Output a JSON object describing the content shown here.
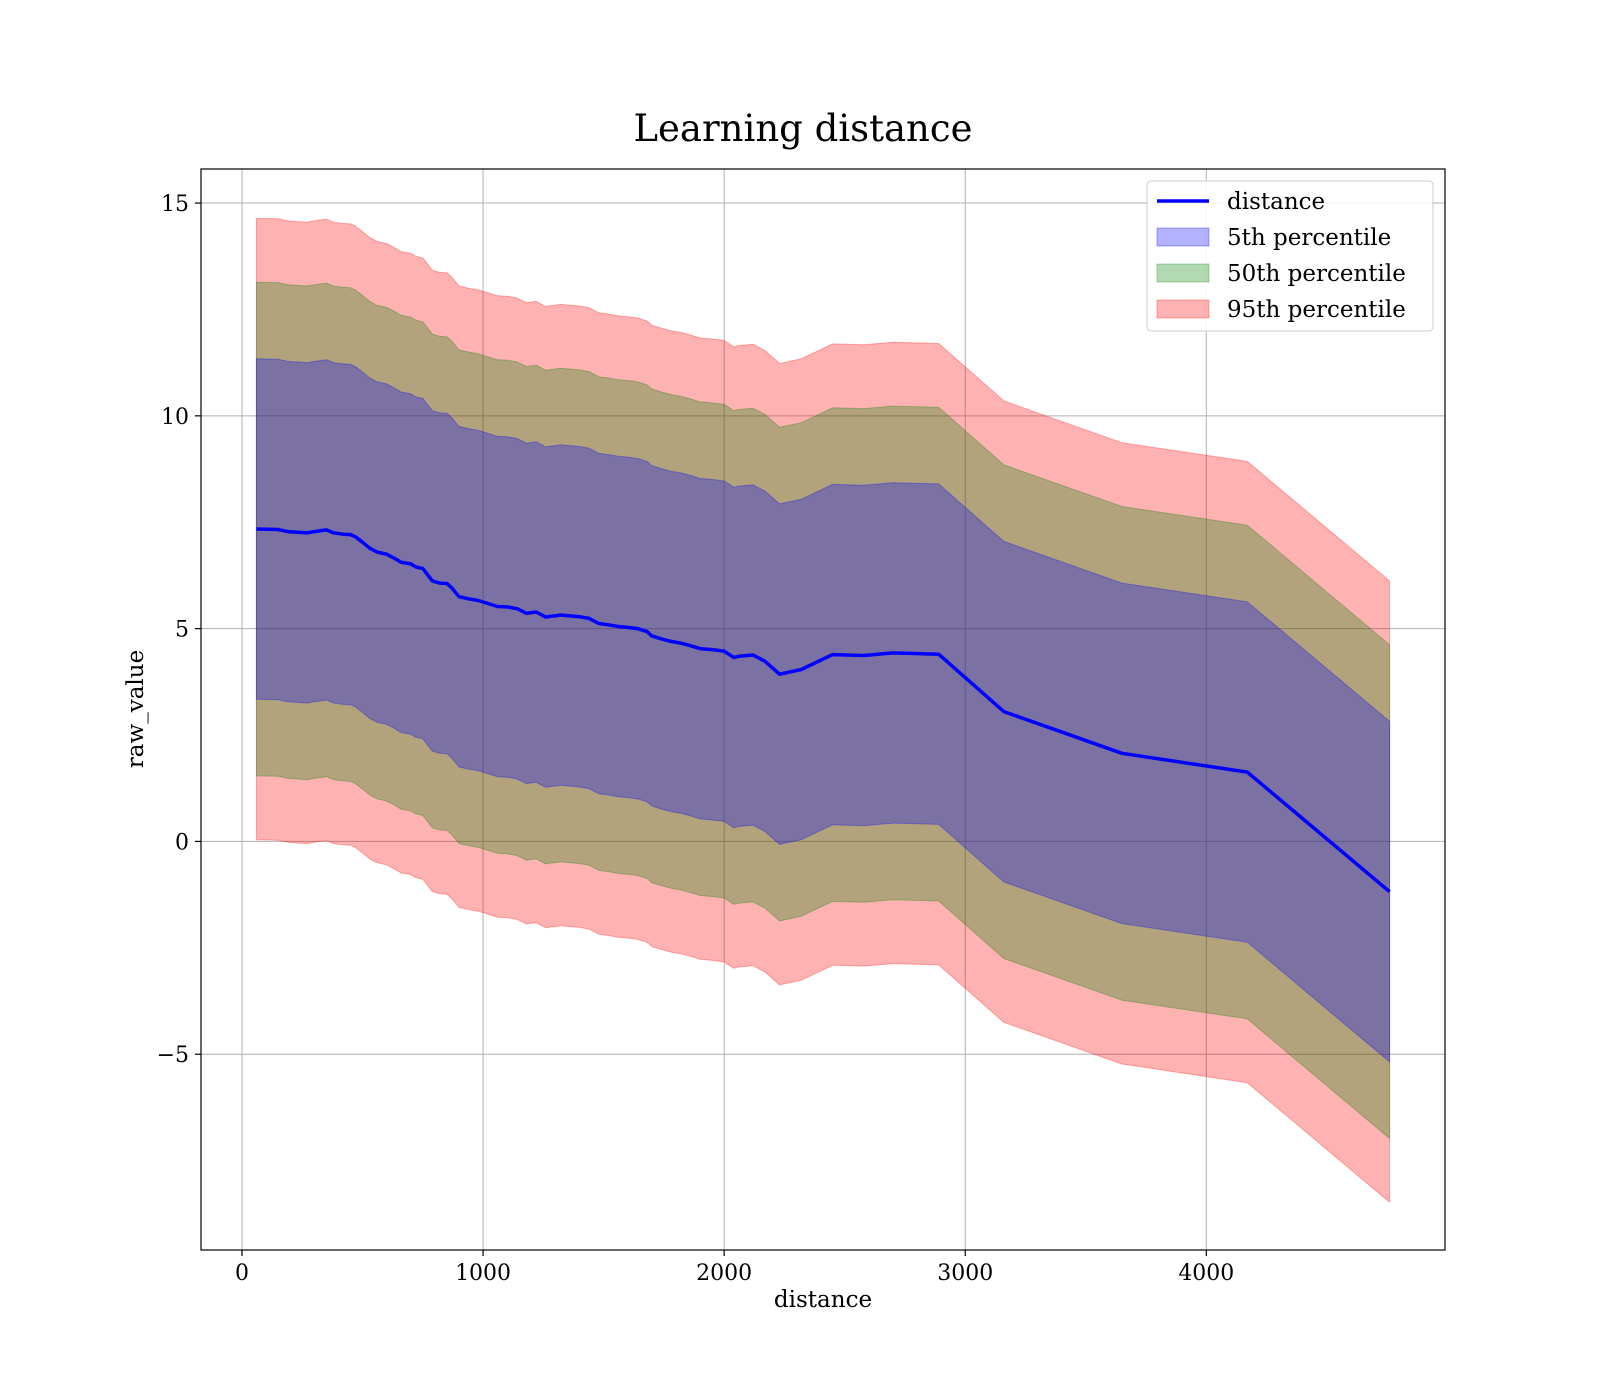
{
  "chart_data": {
    "type": "area",
    "title": "Learning distance",
    "xlabel": "distance",
    "ylabel": "raw_value",
    "xlim": [
      -170,
      4990
    ],
    "ylim": [
      -9.6,
      15.8
    ],
    "x_ticks": [
      0,
      1000,
      2000,
      3000,
      4000
    ],
    "y_ticks": [
      -5,
      0,
      5,
      10,
      15
    ],
    "x_tick_labels": [
      "0",
      "1000",
      "2000",
      "3000",
      "4000"
    ],
    "y_tick_labels": [
      "−5",
      "0",
      "5",
      "10",
      "15"
    ],
    "grid": true,
    "legend_position": "top-right",
    "x": [
      60,
      150,
      190,
      270,
      300,
      350,
      380,
      420,
      450,
      470,
      500,
      530,
      560,
      600,
      630,
      660,
      700,
      720,
      750,
      790,
      820,
      850,
      870,
      900,
      940,
      980,
      1020,
      1060,
      1100,
      1140,
      1180,
      1220,
      1260,
      1280,
      1300,
      1320,
      1360,
      1400,
      1440,
      1480,
      1520,
      1560,
      1600,
      1640,
      1680,
      1700,
      1740,
      1780,
      1820,
      1860,
      1900,
      1960,
      2000,
      2040,
      2060,
      2120,
      2170,
      2230,
      2320,
      2450,
      2580,
      2700,
      2890,
      3160,
      3650,
      4170,
      4760
    ],
    "distance": [
      7.34,
      7.33,
      7.28,
      7.25,
      7.28,
      7.32,
      7.25,
      7.22,
      7.21,
      7.16,
      7.03,
      6.89,
      6.8,
      6.75,
      6.66,
      6.56,
      6.52,
      6.45,
      6.41,
      6.12,
      6.07,
      6.06,
      5.96,
      5.75,
      5.7,
      5.66,
      5.59,
      5.52,
      5.51,
      5.47,
      5.36,
      5.39,
      5.27,
      5.29,
      5.3,
      5.32,
      5.3,
      5.28,
      5.24,
      5.12,
      5.09,
      5.05,
      5.03,
      5.0,
      4.93,
      4.83,
      4.76,
      4.7,
      4.66,
      4.6,
      4.53,
      4.5,
      4.47,
      4.32,
      4.35,
      4.38,
      4.23,
      3.93,
      4.04,
      4.39,
      4.37,
      4.43,
      4.4,
      3.05,
      2.07,
      1.63,
      -1.18
    ],
    "series": [
      {
        "name": "distance",
        "color": "#0000ff",
        "values_key": "distance"
      },
      {
        "name": "5th percentile",
        "color": "#0000ff",
        "opacity": 0.3,
        "offset": 4.0
      },
      {
        "name": "50th percentile",
        "color": "#008000",
        "opacity": 0.3,
        "offset": 5.8
      },
      {
        "name": "95th percentile",
        "color": "#ff0000",
        "opacity": 0.3,
        "offset": 7.3
      }
    ],
    "legend": [
      "distance",
      "5th percentile",
      "50th percentile",
      "95th percentile"
    ]
  }
}
